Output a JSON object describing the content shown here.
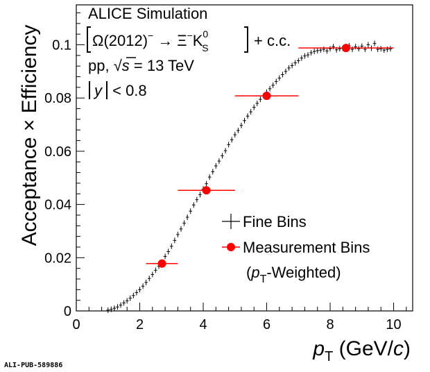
{
  "chart_data": {
    "type": "scatter",
    "x_axis_label": "p",
    "x_axis_sub": "T",
    "x_axis_unit_open": " (GeV/",
    "x_axis_unit_c": "c",
    "x_axis_unit_close": ")",
    "y_axis_label": "Acceptance × Efficiency",
    "xlim": [
      0,
      10.6
    ],
    "ylim": [
      0,
      0.115
    ],
    "x_ticks": [
      0,
      2,
      4,
      6,
      8,
      10
    ],
    "y_ticks": [
      0,
      0.02,
      0.04,
      0.06,
      0.08,
      0.1
    ],
    "x_tick_labels": [
      "0",
      "2",
      "4",
      "6",
      "8",
      "10"
    ],
    "y_tick_labels": [
      "0",
      "0.02",
      "0.04",
      "0.06",
      "0.08",
      "0.1"
    ],
    "annotations": {
      "line1": "ALICE Simulation",
      "line2_a": "Ω(2012)",
      "line2_sup": "−",
      "line2_arrow": "→",
      "line2_b": "Ξ",
      "line2_bsup": "−",
      "line2_c": "K",
      "line2_csup": "0",
      "line2_csub": "S",
      "line2_d": "+ c.c.",
      "line3_a": "pp, ",
      "line3_sqrt": "√",
      "line3_s": "s",
      "line3_b": " = 13 TeV",
      "line4_a": "y",
      "line4_b": " < 0.8"
    },
    "legend": {
      "fine": "Fine Bins",
      "meas": "Measurement Bins",
      "meas2_open": "(",
      "meas2_p": "p",
      "meas2_sub": "T",
      "meas2_close": "-Weighted)"
    },
    "series": [
      {
        "name": "Fine Bins",
        "color": "#000000",
        "x": [
          1.0,
          1.1,
          1.2,
          1.3,
          1.4,
          1.5,
          1.6,
          1.7,
          1.8,
          1.9,
          2.0,
          2.1,
          2.2,
          2.3,
          2.4,
          2.5,
          2.6,
          2.7,
          2.8,
          2.9,
          3.0,
          3.1,
          3.2,
          3.3,
          3.4,
          3.5,
          3.6,
          3.7,
          3.8,
          3.9,
          4.0,
          4.1,
          4.2,
          4.3,
          4.4,
          4.5,
          4.6,
          4.7,
          4.8,
          4.9,
          5.0,
          5.1,
          5.2,
          5.3,
          5.4,
          5.5,
          5.6,
          5.7,
          5.8,
          5.9,
          6.0,
          6.1,
          6.2,
          6.3,
          6.4,
          6.5,
          6.6,
          6.7,
          6.8,
          6.9,
          7.0,
          7.1,
          7.2,
          7.3,
          7.4,
          7.5,
          7.6,
          7.7,
          7.8,
          7.9,
          8.0,
          8.1,
          8.2,
          8.3,
          8.4,
          8.5,
          8.6,
          8.7,
          8.8,
          8.9,
          9.0,
          9.1,
          9.2,
          9.3,
          9.4,
          9.5,
          9.6,
          9.7,
          9.8,
          9.9
        ],
        "y": [
          0.0003,
          0.0006,
          0.001,
          0.0015,
          0.0022,
          0.003,
          0.0038,
          0.0048,
          0.0058,
          0.0069,
          0.008,
          0.0093,
          0.0107,
          0.0122,
          0.0137,
          0.0153,
          0.0168,
          0.0182,
          0.0205,
          0.0223,
          0.0243,
          0.0265,
          0.0287,
          0.0308,
          0.033,
          0.0352,
          0.0375,
          0.0398,
          0.0418,
          0.0437,
          0.0458,
          0.0478,
          0.0503,
          0.0523,
          0.0545,
          0.0563,
          0.0583,
          0.0602,
          0.0625,
          0.0643,
          0.0662,
          0.0678,
          0.0697,
          0.0715,
          0.0732,
          0.0748,
          0.0765,
          0.078,
          0.0795,
          0.0808,
          0.0822,
          0.0835,
          0.0848,
          0.0862,
          0.0875,
          0.0888,
          0.09,
          0.0913,
          0.0922,
          0.0932,
          0.094,
          0.095,
          0.0958,
          0.0962,
          0.097,
          0.0975,
          0.0978,
          0.098,
          0.0983,
          0.0977,
          0.0985,
          0.0993,
          0.0981,
          0.0985,
          0.0987,
          0.099,
          0.0996,
          0.0983,
          0.0993,
          0.0985,
          0.0995,
          0.0983,
          0.1,
          0.0987,
          0.1005,
          0.0983,
          0.0985,
          0.098,
          0.0983,
          0.0985
        ]
      },
      {
        "name": "Measurement Bins",
        "color": "#ff0000",
        "x": [
          2.7,
          4.1,
          6.0,
          8.5
        ],
        "xerr_low": [
          0.5,
          0.9,
          1.0,
          1.5
        ],
        "xerr_high": [
          0.5,
          0.9,
          1.0,
          1.5
        ],
        "y": [
          0.0178,
          0.0453,
          0.0808,
          0.0988
        ]
      }
    ],
    "footer": "ALI-PUB-589886"
  }
}
